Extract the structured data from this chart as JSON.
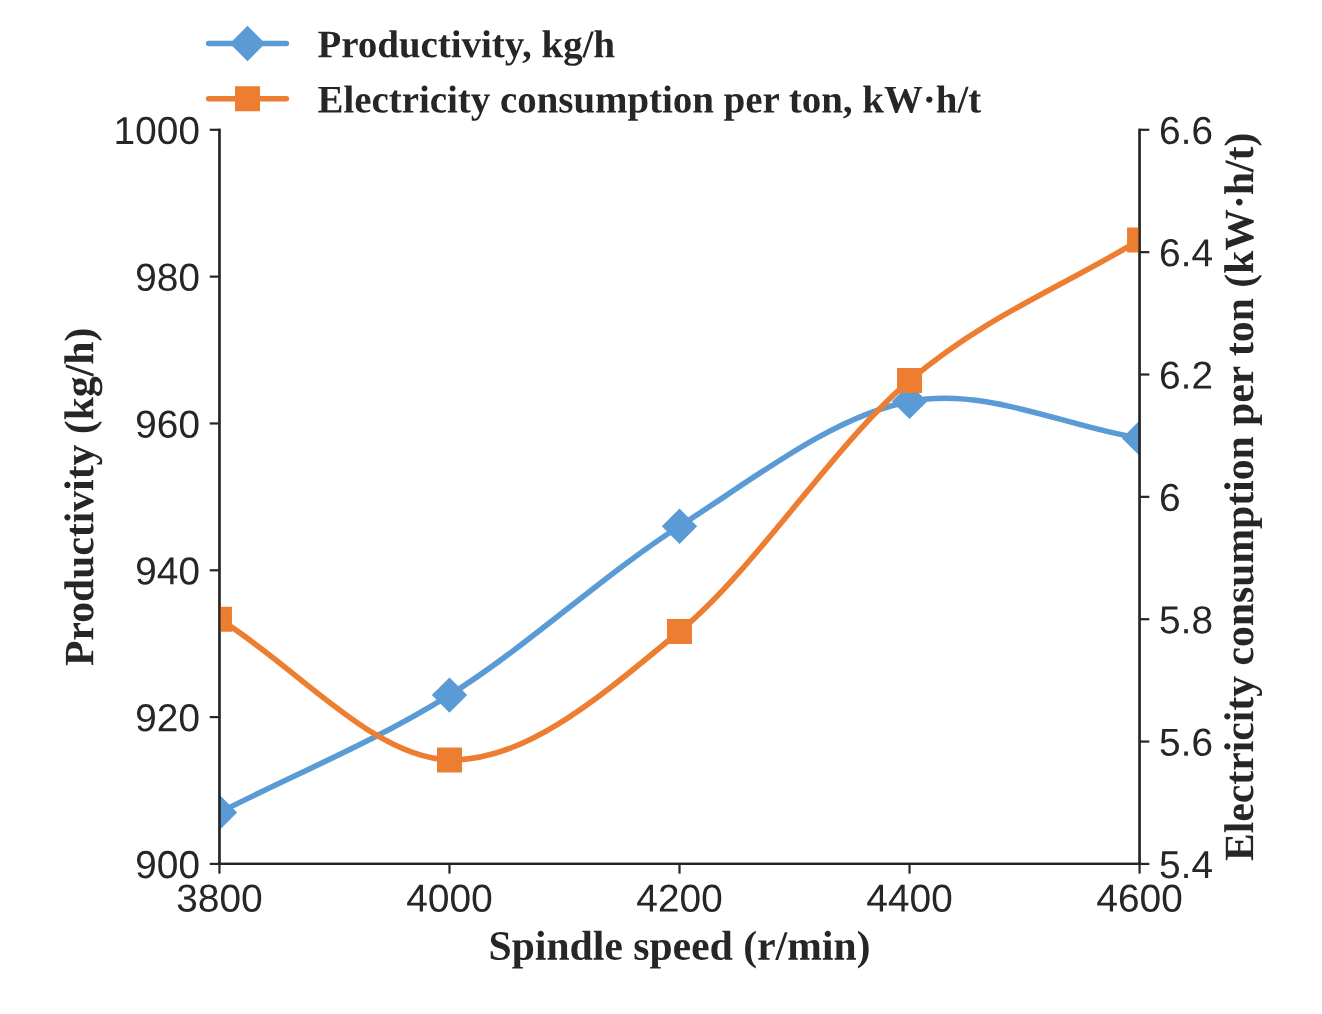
{
  "chart_data": {
    "type": "line",
    "xlabel": "Spindle speed (r/min)",
    "ylabel": "Productivity (kg/h)",
    "y2label": "Electricity consumption per ton (kW·h/t)",
    "x": [
      3800,
      4000,
      4200,
      4400,
      4600
    ],
    "series": [
      {
        "name": "Productivity, kg/h",
        "color": "#5b9bd5",
        "values": [
          907,
          923,
          946,
          963,
          958
        ],
        "marker": "diamond"
      },
      {
        "name": "Electricity consumption per ton, kW·h/t",
        "color": "#ed7d31",
        "values": [
          5.8,
          5.57,
          5.78,
          6.19,
          6.42
        ],
        "axis": "y2",
        "marker": "square"
      }
    ],
    "xlim": [
      3800,
      4600
    ],
    "xticks": [
      3800,
      4000,
      4200,
      4400,
      4600
    ],
    "ylim": [
      900,
      1000
    ],
    "yticks": [
      900,
      920,
      940,
      960,
      980,
      1000
    ],
    "y2lim": [
      5.4,
      6.6
    ],
    "y2ticks": [
      5.4,
      5.6,
      5.8,
      6,
      6.2,
      6.4,
      6.6
    ],
    "grid": false,
    "legend": "top",
    "line_style": "solid"
  }
}
